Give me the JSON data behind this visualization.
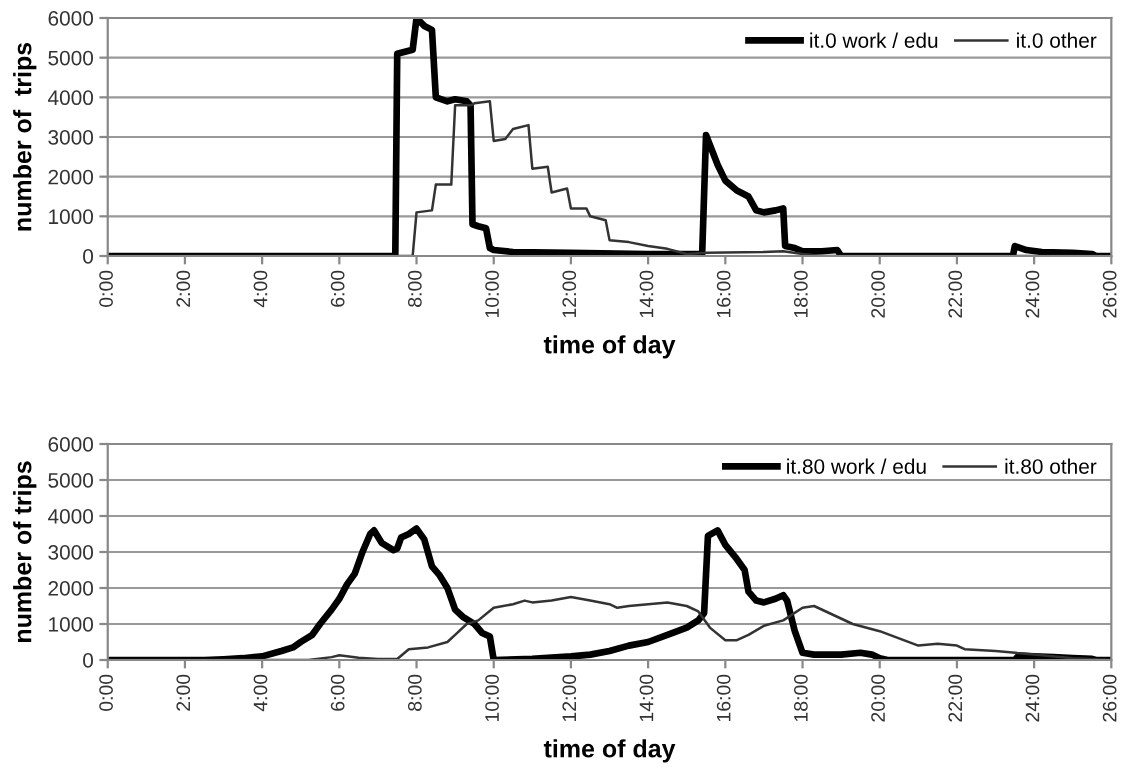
{
  "chart_data": [
    {
      "type": "line",
      "xlabel": "time of day",
      "ylabel": "number of  trips",
      "xlim": [
        0,
        26
      ],
      "ylim": [
        0,
        6000
      ],
      "xticks": [
        {
          "value": 0,
          "label": "0:00"
        },
        {
          "value": 2,
          "label": "2:00"
        },
        {
          "value": 4,
          "label": "4:00"
        },
        {
          "value": 6,
          "label": "6:00"
        },
        {
          "value": 8,
          "label": "8:00"
        },
        {
          "value": 10,
          "label": "10:00"
        },
        {
          "value": 12,
          "label": "12:00"
        },
        {
          "value": 14,
          "label": "14:00"
        },
        {
          "value": 16,
          "label": "16:00"
        },
        {
          "value": 18,
          "label": "18:00"
        },
        {
          "value": 20,
          "label": "20:00"
        },
        {
          "value": 22,
          "label": "22:00"
        },
        {
          "value": 24,
          "label": "24:00"
        },
        {
          "value": 26,
          "label": "26:00"
        }
      ],
      "yticks": [
        0,
        1000,
        2000,
        3000,
        4000,
        5000,
        6000
      ],
      "grid": "y",
      "legend": "top right",
      "marker": "none",
      "line_style": "solid",
      "series": [
        {
          "name": "it.0 work / edu",
          "color": "#000000",
          "x": [
            0,
            7.45,
            7.5,
            7.7,
            7.9,
            8.0,
            8.2,
            8.4,
            8.5,
            8.8,
            9.0,
            9.3,
            9.4,
            9.45,
            9.6,
            9.8,
            9.9,
            10.0,
            10.5,
            12,
            14,
            15.4,
            15.5,
            15.8,
            16.0,
            16.3,
            16.6,
            16.8,
            17.0,
            17.3,
            17.5,
            17.55,
            17.8,
            18,
            18.5,
            18.9,
            19.0,
            23.45,
            23.5,
            23.8,
            24.2,
            25,
            25.5,
            25.6,
            26
          ],
          "values": [
            0,
            0,
            5100,
            5150,
            5200,
            6000,
            5800,
            5700,
            4000,
            3900,
            3950,
            3900,
            3800,
            800,
            750,
            700,
            200,
            150,
            100,
            80,
            50,
            50,
            3050,
            2300,
            1900,
            1650,
            1500,
            1150,
            1100,
            1150,
            1200,
            250,
            200,
            120,
            120,
            150,
            0,
            0,
            250,
            150,
            100,
            80,
            50,
            0,
            0
          ]
        },
        {
          "name": "it.0 other",
          "color": "#333333",
          "x": [
            0,
            7.9,
            8.0,
            8.4,
            8.5,
            8.9,
            9.0,
            9.4,
            9.5,
            9.9,
            10.0,
            10.3,
            10.5,
            10.9,
            11.0,
            11.4,
            11.5,
            11.9,
            12.0,
            12.4,
            12.5,
            12.9,
            13.0,
            13.5,
            14.0,
            14.5,
            15.0,
            15.5,
            17,
            17.5,
            18,
            18.5,
            19,
            26
          ],
          "values": [
            0,
            0,
            1100,
            1150,
            1800,
            1800,
            3800,
            3800,
            3850,
            3900,
            2900,
            2950,
            3200,
            3300,
            2200,
            2250,
            1600,
            1700,
            1200,
            1200,
            1000,
            900,
            400,
            350,
            250,
            180,
            50,
            80,
            100,
            120,
            50,
            0,
            0,
            0
          ]
        }
      ]
    },
    {
      "type": "line",
      "xlabel": "time of day",
      "ylabel": "number of trips",
      "xlim": [
        0,
        26
      ],
      "ylim": [
        0,
        6000
      ],
      "xticks": [
        {
          "value": 0,
          "label": "0:00"
        },
        {
          "value": 2,
          "label": "2:00"
        },
        {
          "value": 4,
          "label": "4:00"
        },
        {
          "value": 6,
          "label": "6:00"
        },
        {
          "value": 8,
          "label": "8:00"
        },
        {
          "value": 10,
          "label": "10:00"
        },
        {
          "value": 12,
          "label": "12:00"
        },
        {
          "value": 14,
          "label": "14:00"
        },
        {
          "value": 16,
          "label": "16:00"
        },
        {
          "value": 18,
          "label": "18:00"
        },
        {
          "value": 20,
          "label": "20:00"
        },
        {
          "value": 22,
          "label": "22:00"
        },
        {
          "value": 24,
          "label": "24:00"
        },
        {
          "value": 26,
          "label": "26:00"
        }
      ],
      "yticks": [
        0,
        1000,
        2000,
        3000,
        4000,
        5000,
        6000
      ],
      "grid": "y",
      "legend": "top right",
      "marker": "none",
      "line_style": "solid",
      "series": [
        {
          "name": "it.80 work / edu",
          "color": "#000000",
          "x": [
            0,
            2.5,
            3,
            3.5,
            4,
            4.5,
            4.8,
            5,
            5.3,
            5.5,
            5.8,
            6.0,
            6.2,
            6.4,
            6.6,
            6.8,
            6.9,
            7.1,
            7.4,
            7.5,
            7.6,
            7.8,
            8.0,
            8.2,
            8.4,
            8.6,
            8.8,
            9.0,
            9.2,
            9.5,
            9.7,
            9.9,
            10.0,
            11,
            12,
            12.5,
            13,
            13.5,
            14,
            14.5,
            15,
            15.3,
            15.45,
            15.55,
            15.8,
            16,
            16.3,
            16.5,
            16.6,
            16.8,
            17.0,
            17.3,
            17.5,
            17.6,
            17.8,
            18.0,
            18.3,
            19,
            19.5,
            19.8,
            20.0,
            20.2,
            23.5,
            23.6,
            24,
            24.5,
            25,
            25.5,
            25.6,
            26
          ],
          "values": [
            0,
            0,
            20,
            50,
            100,
            250,
            350,
            500,
            700,
            1000,
            1400,
            1700,
            2100,
            2400,
            3000,
            3500,
            3600,
            3250,
            3050,
            3100,
            3400,
            3500,
            3650,
            3350,
            2600,
            2350,
            2000,
            1400,
            1200,
            1000,
            750,
            650,
            0,
            30,
            100,
            150,
            250,
            400,
            500,
            700,
            900,
            1100,
            1300,
            3450,
            3600,
            3200,
            2800,
            2500,
            1900,
            1650,
            1600,
            1700,
            1800,
            1650,
            800,
            200,
            150,
            150,
            200,
            150,
            50,
            0,
            0,
            120,
            100,
            80,
            50,
            30,
            0,
            0
          ]
        },
        {
          "name": "it.80 other",
          "color": "#333333",
          "x": [
            0,
            5.2,
            5.8,
            6.0,
            6.5,
            7.0,
            7.5,
            7.8,
            8.3,
            8.8,
            9.0,
            9.3,
            9.6,
            10.0,
            10.5,
            10.8,
            11,
            11.5,
            12,
            12.5,
            13,
            13.2,
            13.5,
            14,
            14.5,
            15,
            15.3,
            15.6,
            16,
            16.3,
            16.6,
            17,
            17.5,
            18,
            18.3,
            18.8,
            19.3,
            20,
            20.5,
            21,
            21.5,
            22,
            22.2,
            23,
            24,
            25,
            26
          ],
          "values": [
            0,
            0,
            80,
            130,
            60,
            30,
            30,
            300,
            350,
            500,
            700,
            1000,
            1100,
            1450,
            1550,
            1650,
            1600,
            1650,
            1750,
            1650,
            1550,
            1450,
            1500,
            1550,
            1600,
            1500,
            1350,
            900,
            550,
            550,
            700,
            950,
            1100,
            1450,
            1500,
            1250,
            1000,
            800,
            600,
            400,
            450,
            400,
            300,
            250,
            150,
            50,
            0
          ]
        }
      ]
    }
  ]
}
